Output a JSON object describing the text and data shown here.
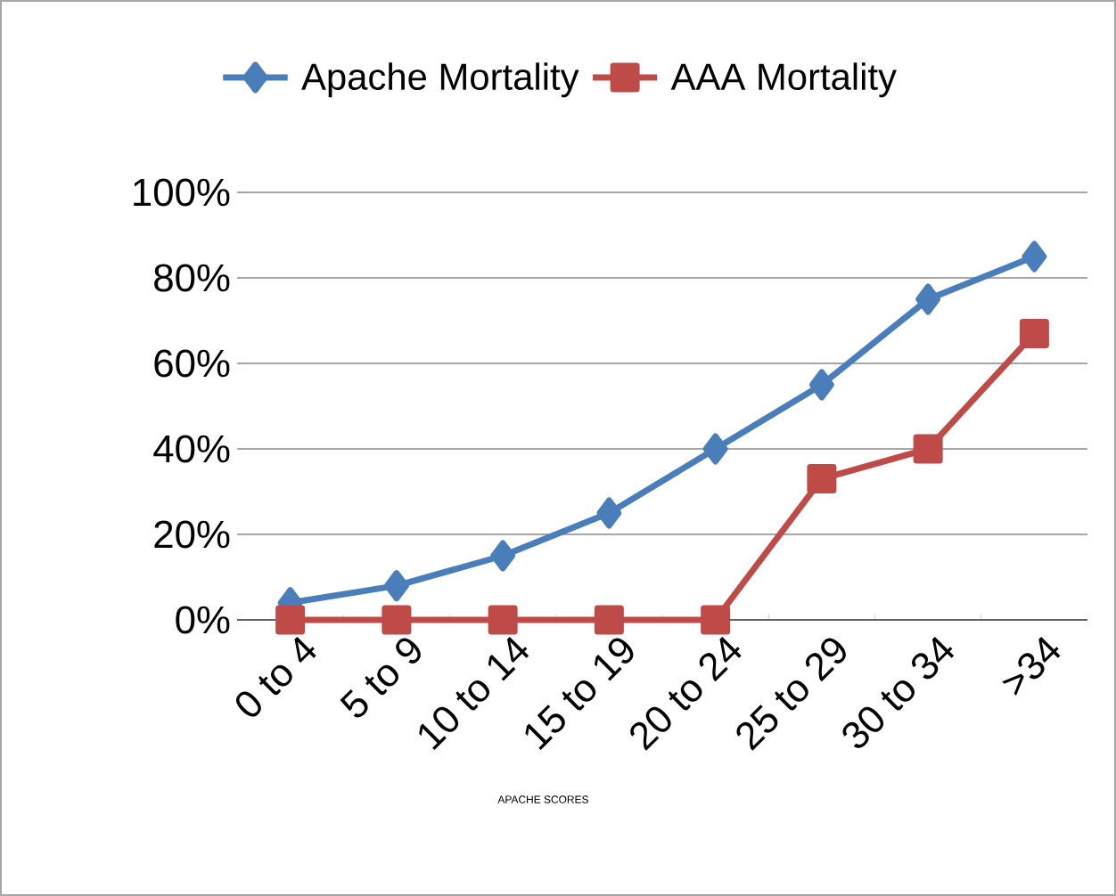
{
  "chart_data": {
    "type": "line",
    "xlabel": "APACHE SCORES",
    "categories": [
      "0 to 4",
      "5 to 9",
      "10 to 14",
      "15 to 19",
      "20 to 24",
      "25 to 29",
      "30 to 34",
      ">34"
    ],
    "series": [
      {
        "name": "Apache Mortality",
        "color": "#4a7ebb",
        "marker": "diamond",
        "values": [
          4,
          8,
          15,
          25,
          40,
          55,
          75,
          85
        ]
      },
      {
        "name": "AAA Mortality",
        "color": "#be4b48",
        "marker": "square",
        "values": [
          0,
          0,
          0,
          0,
          0,
          33,
          40,
          67
        ]
      }
    ],
    "ylim": [
      0,
      100
    ],
    "yticks": [
      {
        "value": 0,
        "label": "0%"
      },
      {
        "value": 20,
        "label": "20%"
      },
      {
        "value": 40,
        "label": "40%"
      },
      {
        "value": 60,
        "label": "60%"
      },
      {
        "value": 80,
        "label": "80%"
      },
      {
        "value": 100,
        "label": "100%"
      }
    ],
    "grid": "y",
    "legend": "top",
    "line_style": "solid"
  }
}
